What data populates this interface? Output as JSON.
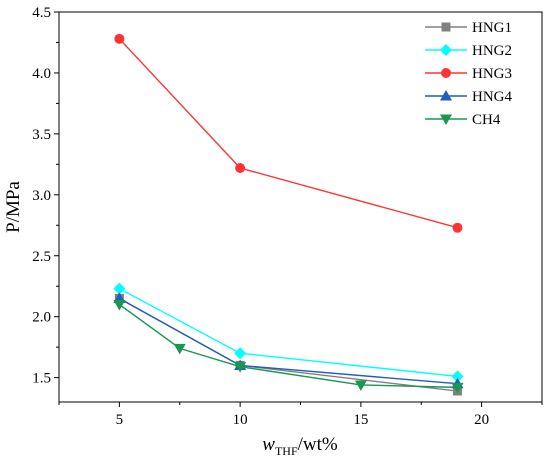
{
  "chart_data": {
    "type": "line",
    "xlabel_main": "w",
    "xlabel_sub": "THF",
    "xlabel_rest": "/wt%",
    "ylabel": "P/MPa",
    "xlim": [
      2.5,
      22.5
    ],
    "ylim": [
      1.3,
      4.5
    ],
    "xticks": [
      5,
      10,
      15,
      20
    ],
    "yticks": [
      1.5,
      2.0,
      2.5,
      3.0,
      3.5,
      4.0,
      4.5
    ],
    "ytick_labels": [
      "1.5",
      "2.0",
      "2.5",
      "3.0",
      "3.5",
      "4.0",
      "4.5"
    ],
    "legend_position": "top-right",
    "series": [
      {
        "name": "HNG1",
        "marker": "square",
        "color": "#808080",
        "x": [
          5,
          10,
          19
        ],
        "y": [
          2.15,
          1.6,
          1.39
        ]
      },
      {
        "name": "HNG2",
        "marker": "diamond",
        "color": "#00ffff",
        "x": [
          5,
          10,
          19
        ],
        "y": [
          2.23,
          1.7,
          1.51
        ]
      },
      {
        "name": "HNG3",
        "marker": "circle",
        "color": "#ff3333",
        "x": [
          5,
          10,
          19
        ],
        "y": [
          4.28,
          3.22,
          2.73
        ]
      },
      {
        "name": "HNG4",
        "marker": "triangle-up",
        "color": "#1f5fbf",
        "x": [
          5,
          10,
          19
        ],
        "y": [
          2.15,
          1.6,
          1.45
        ]
      },
      {
        "name": "CH4",
        "marker": "triangle-down",
        "color": "#1a9850",
        "x": [
          5,
          7.5,
          10,
          15,
          19
        ],
        "y": [
          2.1,
          1.74,
          1.59,
          1.44,
          1.42
        ]
      }
    ]
  }
}
